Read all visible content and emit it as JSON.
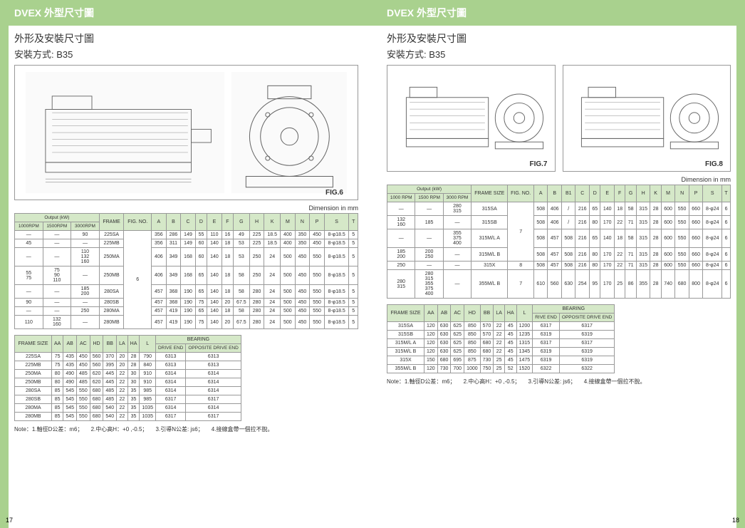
{
  "header": "DVEX  外型尺寸圖",
  "section_title": "外形及安裝尺寸圖",
  "section_sub": "安裝方式: B35",
  "dim_label": "Dimension  in  mm",
  "fig_labels": {
    "f6": "FIG.6",
    "f7": "FIG.7",
    "f8": "FIG.8"
  },
  "pg_left_num": "17",
  "pg_right_num": "18",
  "note_parts": {
    "n1": "Note：1.軸徑D公差：m6；",
    "n2": "2.中心高H：+0 ,-0.5；",
    "n3": "3.引導N公差: js6；",
    "n4": "4.接線盒帶一個拉不脫。"
  },
  "table1_left": {
    "output_header": "Output (kW)",
    "rpm_headers": [
      "1000RPM",
      "1500RPM",
      "3000RPM"
    ],
    "col_headers": [
      "FRAME",
      "FIG. NO.",
      "A",
      "B",
      "C",
      "D",
      "E",
      "F",
      "G",
      "H",
      "K",
      "M",
      "N",
      "P",
      "S",
      "T"
    ],
    "rows": [
      [
        "—",
        "—",
        "90",
        "225SA",
        "356",
        "286",
        "149",
        "55",
        "110",
        "16",
        "49",
        "225",
        "18.5",
        "400",
        "350",
        "450",
        "8-φ18.5",
        "5"
      ],
      [
        "45",
        "—",
        "—",
        "225MB",
        "356",
        "311",
        "149",
        "60",
        "140",
        "18",
        "53",
        "225",
        "18.5",
        "400",
        "350",
        "450",
        "8-φ18.5",
        "5"
      ],
      [
        "—",
        "—",
        "110\n132\n160",
        "250MA",
        "406",
        "349",
        "168",
        "60",
        "140",
        "18",
        "53",
        "250",
        "24",
        "500",
        "450",
        "550",
        "8-φ18.5",
        "5"
      ],
      [
        "55\n75",
        "75\n90\n110",
        "—",
        "250MB",
        "406",
        "349",
        "168",
        "65",
        "140",
        "18",
        "58",
        "250",
        "24",
        "500",
        "450",
        "550",
        "8-φ18.5",
        "5"
      ],
      [
        "—",
        "—",
        "185\n200",
        "280SA",
        "457",
        "368",
        "190",
        "65",
        "140",
        "18",
        "58",
        "280",
        "24",
        "500",
        "450",
        "550",
        "8-φ18.5",
        "5"
      ],
      [
        "90",
        "—",
        "—",
        "280SB",
        "457",
        "368",
        "190",
        "75",
        "140",
        "20",
        "67.5",
        "280",
        "24",
        "500",
        "450",
        "550",
        "8-φ18.5",
        "5"
      ],
      [
        "—",
        "—",
        "250",
        "280MA",
        "457",
        "419",
        "190",
        "65",
        "140",
        "18",
        "58",
        "280",
        "24",
        "500",
        "450",
        "550",
        "8-φ18.5",
        "5"
      ],
      [
        "110",
        "132\n160",
        "—",
        "280MB",
        "457",
        "419",
        "190",
        "75",
        "140",
        "20",
        "67.5",
        "280",
        "24",
        "500",
        "450",
        "550",
        "8-φ18.5",
        "5"
      ]
    ],
    "fig_no_merged": "6"
  },
  "table2_left": {
    "headers": [
      "FRAME SIZE",
      "AA",
      "AB",
      "AC",
      "HD",
      "BB",
      "LA",
      "HA",
      "L"
    ],
    "bearing_header": "BEARING",
    "bearing_sub": [
      "DRIVE END",
      "OPPOSITE DRIVE END"
    ],
    "rows": [
      [
        "225SA",
        "75",
        "435",
        "450",
        "560",
        "370",
        "20",
        "28",
        "790",
        "6313",
        "6313"
      ],
      [
        "225MB",
        "75",
        "435",
        "450",
        "560",
        "395",
        "20",
        "28",
        "840",
        "6313",
        "6313"
      ],
      [
        "250MA",
        "80",
        "490",
        "485",
        "620",
        "445",
        "22",
        "30",
        "910",
        "6314",
        "6314"
      ],
      [
        "250MB",
        "80",
        "490",
        "485",
        "620",
        "445",
        "22",
        "30",
        "910",
        "6314",
        "6314"
      ],
      [
        "280SA",
        "85",
        "545",
        "550",
        "680",
        "485",
        "22",
        "35",
        "985",
        "6314",
        "6314"
      ],
      [
        "280SB",
        "85",
        "545",
        "550",
        "680",
        "485",
        "22",
        "35",
        "985",
        "6317",
        "6317"
      ],
      [
        "280MA",
        "85",
        "545",
        "550",
        "680",
        "540",
        "22",
        "35",
        "1035",
        "6314",
        "6314"
      ],
      [
        "280MB",
        "85",
        "545",
        "550",
        "680",
        "540",
        "22",
        "35",
        "1035",
        "6317",
        "6317"
      ]
    ]
  },
  "table1_right": {
    "output_header": "Output (kW)",
    "rpm_headers": [
      "1000 RPM",
      "1500 RPM",
      "3000 RPM"
    ],
    "col_headers": [
      "FRAME SIZE",
      "FIG. NO.",
      "A",
      "B",
      "B1",
      "C",
      "D",
      "E",
      "F",
      "G",
      "H",
      "K",
      "M",
      "N",
      "P",
      "S",
      "T"
    ],
    "rows": [
      [
        "—",
        "—",
        "280\n315",
        "315SA",
        "508",
        "406",
        "/",
        "216",
        "65",
        "140",
        "18",
        "58",
        "315",
        "28",
        "600",
        "550",
        "660",
        "8-φ24",
        "6"
      ],
      [
        "132\n160",
        "185",
        "—",
        "315SB",
        "508",
        "406",
        "/",
        "216",
        "80",
        "170",
        "22",
        "71",
        "315",
        "28",
        "600",
        "550",
        "660",
        "8-φ24",
        "6"
      ],
      [
        "—",
        "—",
        "355\n375\n400",
        "315M/L A",
        "508",
        "457",
        "508",
        "216",
        "65",
        "140",
        "18",
        "58",
        "315",
        "28",
        "600",
        "550",
        "660",
        "8-φ24",
        "6"
      ],
      [
        "185\n200",
        "200\n250",
        "—",
        "315M/L B",
        "508",
        "457",
        "508",
        "216",
        "80",
        "170",
        "22",
        "71",
        "315",
        "28",
        "600",
        "550",
        "660",
        "8-φ24",
        "6"
      ],
      [
        "250",
        "—",
        "—",
        "315X",
        "508",
        "457",
        "508",
        "216",
        "80",
        "170",
        "22",
        "71",
        "315",
        "28",
        "600",
        "550",
        "660",
        "8-φ24",
        "6"
      ],
      [
        "280\n315",
        "280\n315\n355\n375\n400",
        "—",
        "355M/L B",
        "610",
        "560",
        "630",
        "254",
        "95",
        "170",
        "25",
        "86",
        "355",
        "28",
        "740",
        "680",
        "800",
        "8-φ24",
        "6"
      ]
    ],
    "fig_no_groups": [
      "7",
      "8",
      "7"
    ]
  },
  "table2_right": {
    "headers": [
      "FRAME SIZE",
      "AA",
      "AB",
      "AC",
      "HD",
      "BB",
      "LA",
      "HA",
      "L"
    ],
    "bearing_header": "BEARING",
    "bearing_sub": [
      "RIVE END",
      "OPPOSITE DRIVE END"
    ],
    "rows": [
      [
        "315SA",
        "120",
        "630",
        "625",
        "850",
        "570",
        "22",
        "45",
        "1200",
        "6317",
        "6317"
      ],
      [
        "315SB",
        "120",
        "630",
        "625",
        "850",
        "570",
        "22",
        "45",
        "1235",
        "6319",
        "6319"
      ],
      [
        "315M/L A",
        "120",
        "630",
        "625",
        "850",
        "680",
        "22",
        "45",
        "1315",
        "6317",
        "6317"
      ],
      [
        "315M/L B",
        "120",
        "630",
        "625",
        "850",
        "680",
        "22",
        "45",
        "1345",
        "6319",
        "6319"
      ],
      [
        "315X",
        "150",
        "680",
        "695",
        "875",
        "730",
        "25",
        "45",
        "1475",
        "6319",
        "6319"
      ],
      [
        "355M/L B",
        "120",
        "730",
        "700",
        "1000",
        "750",
        "25",
        "52",
        "1520",
        "6322",
        "6322"
      ]
    ]
  },
  "colors": {
    "bg": "#a9d18e",
    "header_bg": "#a9d18e",
    "th_bg": "#d5e8c8",
    "border": "#999999",
    "text": "#333333"
  }
}
